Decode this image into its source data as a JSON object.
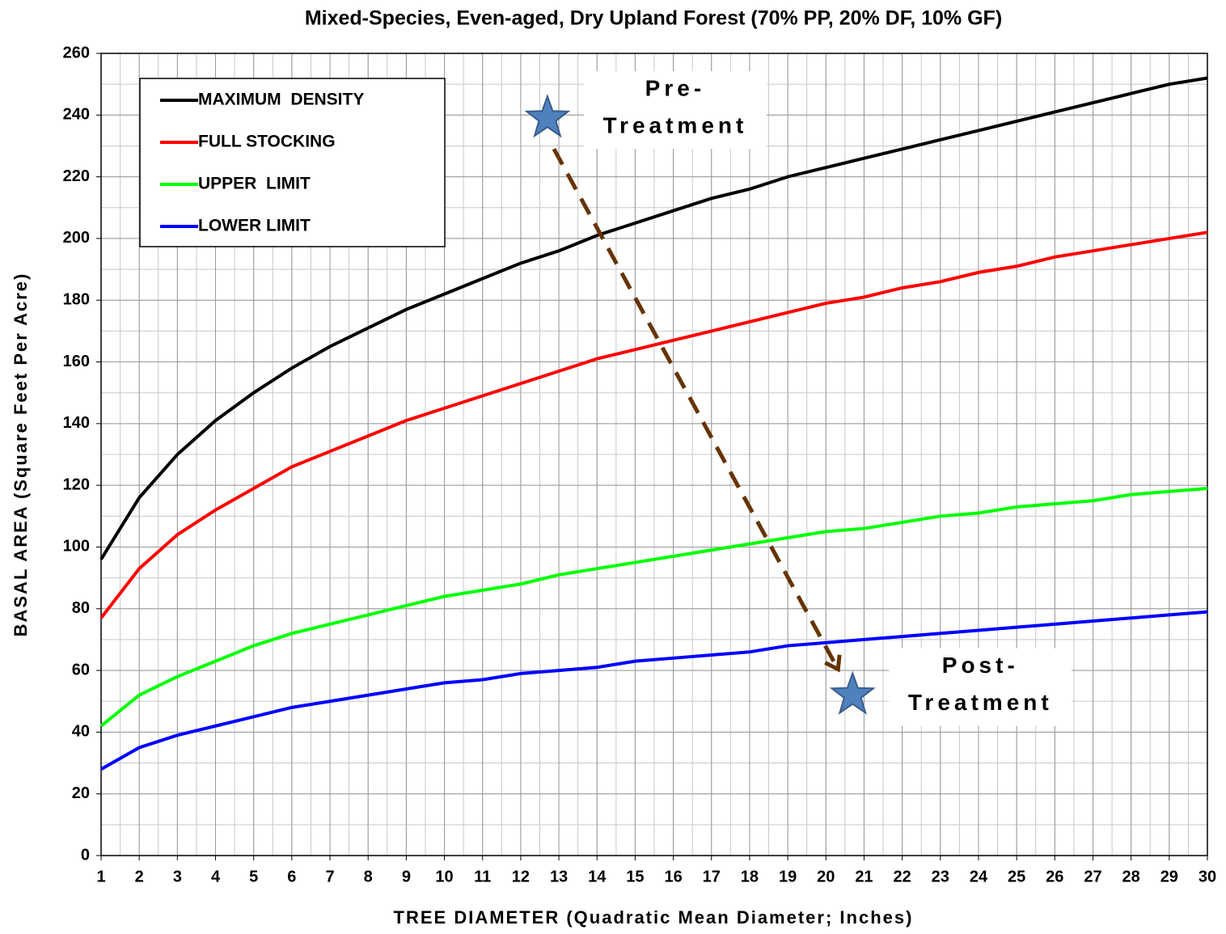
{
  "chart_data": {
    "type": "line",
    "title": "Mixed-Species, Even-aged, Dry Upland Forest (70% PP, 20% DF, 10% GF)",
    "x_label": "TREE DIAMETER (Quadratic Mean Diameter; Inches)",
    "y_label": "BASAL AREA (Square Feet Per Acre)",
    "x": [
      1,
      2,
      3,
      4,
      5,
      6,
      7,
      8,
      9,
      10,
      11,
      12,
      13,
      14,
      15,
      16,
      17,
      18,
      19,
      20,
      21,
      22,
      23,
      24,
      25,
      26,
      27,
      28,
      29,
      30
    ],
    "series": [
      {
        "name": "MAXIMUM  DENSITY",
        "color": "#000000",
        "values": [
          96,
          116,
          130,
          141,
          150,
          158,
          165,
          171,
          177,
          182,
          187,
          192,
          196,
          201,
          205,
          209,
          213,
          216,
          220,
          223,
          226,
          229,
          232,
          235,
          238,
          241,
          244,
          247,
          250,
          252
        ]
      },
      {
        "name": "FULL STOCKING",
        "color": "#ff0000",
        "values": [
          77,
          93,
          104,
          112,
          119,
          126,
          131,
          136,
          141,
          145,
          149,
          153,
          157,
          161,
          164,
          167,
          170,
          173,
          176,
          179,
          181,
          184,
          186,
          189,
          191,
          194,
          196,
          198,
          200,
          202
        ]
      },
      {
        "name": "UPPER  LIMIT",
        "color": "#00ff00",
        "values": [
          42,
          52,
          58,
          63,
          68,
          72,
          75,
          78,
          81,
          84,
          86,
          88,
          91,
          93,
          95,
          97,
          99,
          101,
          103,
          105,
          106,
          108,
          110,
          111,
          113,
          114,
          115,
          117,
          118,
          119
        ]
      },
      {
        "name": "LOWER LIMIT",
        "color": "#0000ff",
        "values": [
          28,
          35,
          39,
          42,
          45,
          48,
          50,
          52,
          54,
          56,
          57,
          59,
          60,
          61,
          63,
          64,
          65,
          66,
          68,
          69,
          70,
          71,
          72,
          73,
          74,
          75,
          76,
          77,
          78,
          79
        ]
      }
    ],
    "points": [
      {
        "x": 12.7,
        "y": 239,
        "label": [
          "Pre-",
          "Treatment"
        ]
      },
      {
        "x": 20.7,
        "y": 52,
        "label": [
          "Post-",
          "Treatment"
        ]
      }
    ],
    "point_color": "#4f81bd",
    "arrow_color": "#663300",
    "xlim": [
      1,
      30
    ],
    "xticks": [
      1,
      2,
      3,
      4,
      5,
      6,
      7,
      8,
      9,
      10,
      11,
      12,
      13,
      14,
      15,
      16,
      17,
      18,
      19,
      20,
      21,
      22,
      23,
      24,
      25,
      26,
      27,
      28,
      29,
      30
    ],
    "ylim": [
      0,
      260
    ],
    "yticks": [
      0,
      20,
      40,
      60,
      80,
      100,
      120,
      140,
      160,
      180,
      200,
      220,
      240,
      260
    ],
    "grid": true,
    "xgrid_step": 0.5,
    "ygrid_step": 10,
    "legend": "upper left"
  }
}
